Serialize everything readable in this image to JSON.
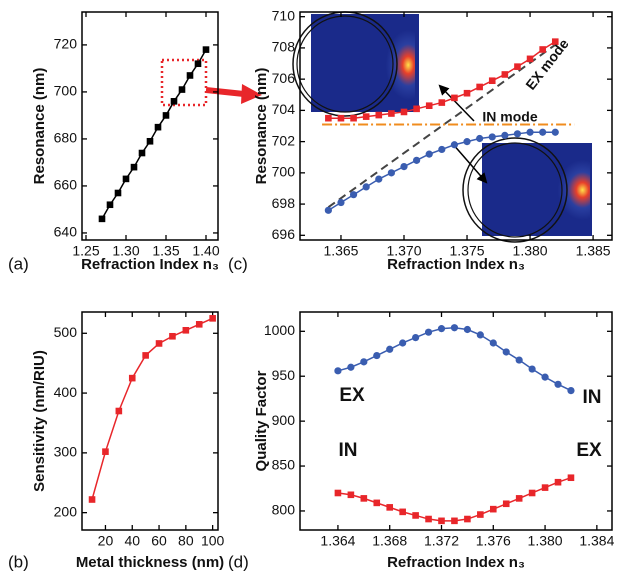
{
  "chart_data": [
    {
      "type": "line",
      "panel_label": "(a)",
      "x_label": "Refraction Index n₃",
      "y_label": "Resonance (nm)",
      "xlim": [
        1.245,
        1.415
      ],
      "ylim": [
        637,
        734
      ],
      "xticks": [
        1.25,
        {
          "value": 1.3,
          "label": "1.30"
        },
        1.35,
        {
          "value": 1.4,
          "label": "1.40"
        }
      ],
      "yticks": [
        640,
        660,
        680,
        700,
        720
      ],
      "x": [
        1.27,
        1.28,
        1.29,
        1.3,
        1.31,
        1.32,
        1.33,
        1.34,
        1.35,
        1.36,
        1.37,
        1.38,
        1.39,
        1.4
      ],
      "series": [
        {
          "color": "#000000",
          "marker": "square",
          "values": [
            646,
            652,
            657,
            663,
            668,
            674,
            679,
            685,
            690,
            696,
            701,
            707,
            712,
            718
          ]
        }
      ]
    },
    {
      "type": "line",
      "panel_label": "(c)",
      "x_label": "Refraction Index n₃",
      "y_label": "Resonance (nm)",
      "xlim": [
        1.36175,
        1.3865
      ],
      "ylim": [
        695.7,
        710.3
      ],
      "xticks": [
        1.365,
        {
          "value": 1.37,
          "label": "1.370"
        },
        1.375,
        {
          "value": 1.38,
          "label": "1.380"
        },
        1.385
      ],
      "yticks": [
        696,
        698,
        700,
        702,
        704,
        706,
        708,
        710
      ],
      "x": [
        1.364,
        1.365,
        1.366,
        1.367,
        1.368,
        1.369,
        1.37,
        1.371,
        1.372,
        1.373,
        1.374,
        1.375,
        1.376,
        1.377,
        1.378,
        1.379,
        1.38,
        1.381,
        1.382
      ],
      "series": [
        {
          "color": "#e8262a",
          "marker": "square",
          "values": [
            703.5,
            703.5,
            703.5,
            703.6,
            703.7,
            703.8,
            703.9,
            704.1,
            704.3,
            704.5,
            704.8,
            705.1,
            705.5,
            705.9,
            706.3,
            706.8,
            707.3,
            707.9,
            708.4
          ]
        },
        {
          "color": "#3a5db0",
          "marker": "circle",
          "values": [
            697.6,
            698.1,
            698.6,
            699.1,
            699.6,
            700.0,
            700.4,
            700.8,
            701.2,
            701.5,
            701.8,
            702.0,
            702.2,
            702.3,
            702.4,
            702.5,
            702.6,
            702.6,
            702.6
          ]
        }
      ],
      "reference_lines": [
        {
          "color": "#444444",
          "dash": "dashed",
          "x": [
            1.364,
            1.382
          ],
          "y": [
            697.8,
            708.2
          ]
        },
        {
          "color": "#f08c1e",
          "dash": "dashdot",
          "x": [
            1.3635,
            1.3835
          ],
          "y": [
            703.1,
            703.1
          ]
        }
      ],
      "annotations": [
        "EX mode",
        "IN mode"
      ]
    },
    {
      "type": "line",
      "panel_label": "(b)",
      "x_label": "Metal thickness (nm)",
      "y_label": "Sensitivity (nm/RIU)",
      "xlim": [
        2.5,
        104
      ],
      "ylim": [
        171,
        535.6
      ],
      "xticks": [
        20,
        40,
        60,
        80,
        100
      ],
      "yticks": [
        200,
        300,
        400,
        500
      ],
      "x": [
        10,
        20,
        30,
        40,
        50,
        60,
        70,
        80,
        90,
        100
      ],
      "series": [
        {
          "color": "#e8262a",
          "marker": "square",
          "values": [
            222,
            302,
            370,
            425,
            463,
            483,
            495,
            505,
            515,
            525
          ]
        }
      ]
    },
    {
      "type": "line",
      "panel_label": "(d)",
      "x_label": "Refraction Index n₃",
      "y_label": "Quality Factor",
      "xlim": [
        1.36107,
        1.38517
      ],
      "ylim": [
        778.8,
        1021.5
      ],
      "xticks": [
        1.364,
        1.368,
        1.372,
        1.376,
        {
          "value": 1.38,
          "label": "1.380"
        },
        1.384
      ],
      "yticks": [
        800,
        850,
        900,
        950,
        1000
      ],
      "x": [
        1.364,
        1.365,
        1.366,
        1.367,
        1.368,
        1.369,
        1.37,
        1.371,
        1.372,
        1.373,
        1.374,
        1.375,
        1.376,
        1.377,
        1.378,
        1.379,
        1.38,
        1.381,
        1.382
      ],
      "series": [
        {
          "color": "#3a5db0",
          "marker": "circle",
          "values": [
            956,
            960,
            966,
            973,
            980,
            987,
            993,
            999,
            1003,
            1004,
            1002,
            996,
            987,
            977,
            968,
            958,
            949,
            941,
            934
          ]
        },
        {
          "color": "#e8262a",
          "marker": "square",
          "values": [
            820,
            818,
            814,
            809,
            804,
            799,
            795,
            791,
            789,
            789,
            791,
            796,
            802,
            808,
            814,
            820,
            826,
            832,
            837
          ]
        }
      ],
      "annotations": [
        "EX",
        "IN",
        "IN",
        "EX"
      ]
    }
  ]
}
